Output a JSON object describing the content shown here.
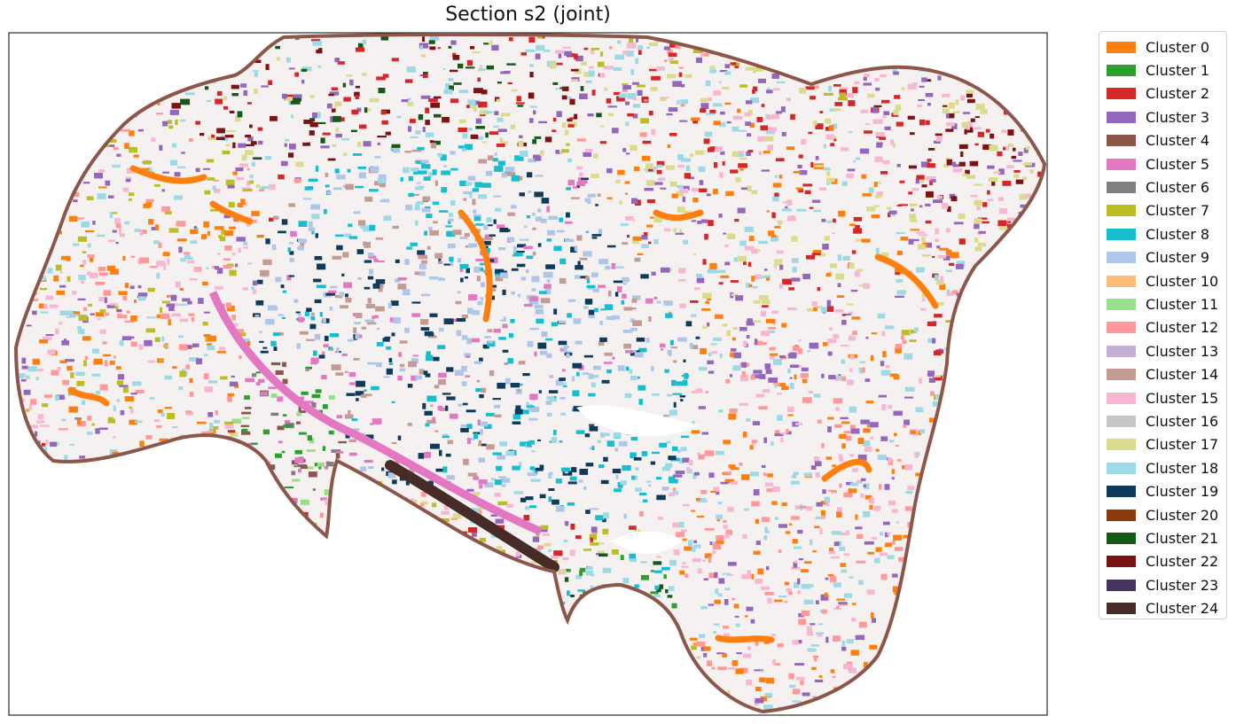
{
  "chart_data": {
    "type": "scatter",
    "title": "Section s2 (joint)",
    "xlabel": "",
    "ylabel": "",
    "axis_ticks": "none",
    "grid": false,
    "legend_placement": "outside-right",
    "colors": {
      "background": "#ffffff",
      "frame": "#000000",
      "tissue_outline": "#8c564b"
    },
    "series": [
      {
        "name": "Cluster 0",
        "color": "#ff7f0e"
      },
      {
        "name": "Cluster 1",
        "color": "#2ca02c"
      },
      {
        "name": "Cluster 2",
        "color": "#d62728"
      },
      {
        "name": "Cluster 3",
        "color": "#9467bd"
      },
      {
        "name": "Cluster 4",
        "color": "#8c564b"
      },
      {
        "name": "Cluster 5",
        "color": "#e377c2"
      },
      {
        "name": "Cluster 6",
        "color": "#7f7f7f"
      },
      {
        "name": "Cluster 7",
        "color": "#bcbd22"
      },
      {
        "name": "Cluster 8",
        "color": "#17becf"
      },
      {
        "name": "Cluster 9",
        "color": "#aec7e8"
      },
      {
        "name": "Cluster 10",
        "color": "#ffbb78"
      },
      {
        "name": "Cluster 11",
        "color": "#98df8a"
      },
      {
        "name": "Cluster 12",
        "color": "#ff9896"
      },
      {
        "name": "Cluster 13",
        "color": "#c5b0d5"
      },
      {
        "name": "Cluster 14",
        "color": "#c49c94"
      },
      {
        "name": "Cluster 15",
        "color": "#f7b6d2"
      },
      {
        "name": "Cluster 16",
        "color": "#c7c7c7"
      },
      {
        "name": "Cluster 17",
        "color": "#dbdb8d"
      },
      {
        "name": "Cluster 18",
        "color": "#9edae5"
      },
      {
        "name": "Cluster 19",
        "color": "#0e3a5c"
      },
      {
        "name": "Cluster 20",
        "color": "#8b3a0e"
      },
      {
        "name": "Cluster 21",
        "color": "#145a17"
      },
      {
        "name": "Cluster 22",
        "color": "#7a1414"
      },
      {
        "name": "Cluster 23",
        "color": "#463360"
      },
      {
        "name": "Cluster 24",
        "color": "#472b26"
      }
    ]
  }
}
